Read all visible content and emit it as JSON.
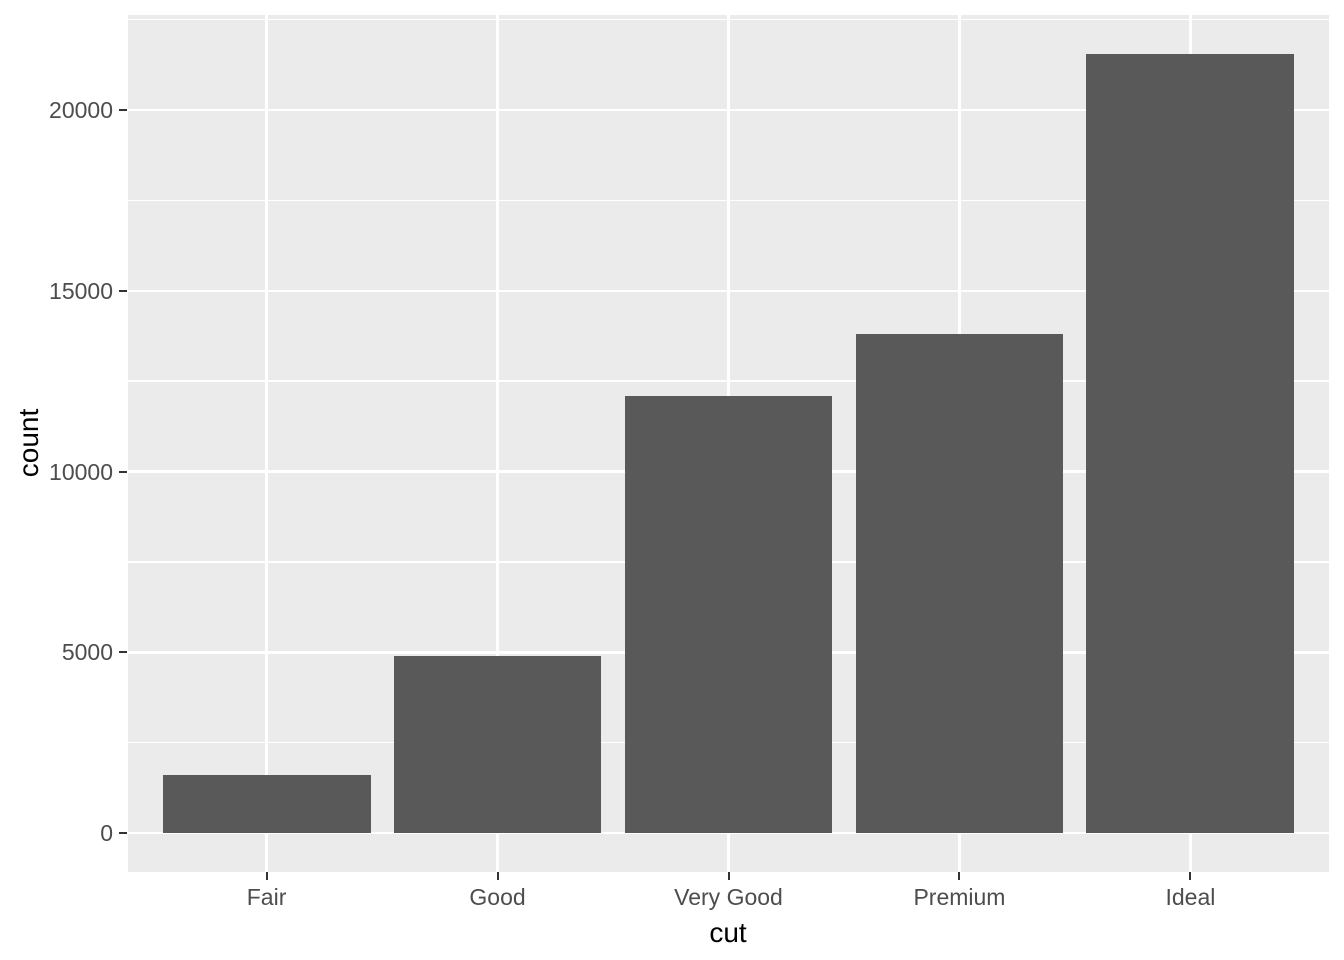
{
  "chart_data": {
    "type": "bar",
    "title": "",
    "categories": [
      "Fair",
      "Good",
      "Very Good",
      "Premium",
      "Ideal"
    ],
    "values": [
      1610,
      4906,
      12082,
      13791,
      21551
    ],
    "xlabel": "cut",
    "ylabel": "count",
    "y_ticks": {
      "breaks": [
        0,
        5000,
        10000,
        15000,
        20000
      ],
      "labels": [
        "0",
        "5000",
        "10000",
        "15000",
        "20000"
      ]
    },
    "y_minor_breaks": [
      2500,
      7500,
      12500,
      17500,
      22500
    ],
    "ylim": [
      -1078,
      22629
    ],
    "xlim_units": [
      0.4,
      5.6
    ],
    "bar_relative_width": 0.9,
    "grid": {
      "major": true,
      "minor": true
    },
    "legend_position": "none",
    "style": {
      "bar_fill": "#595959",
      "panel_background": "#EBEBEB",
      "grid_color": "#FFFFFF",
      "tick_label_color": "#4D4D4D",
      "axis_title_color": "#000000",
      "tick_mark_color": "#333333",
      "figure_background": "#FFFFFF"
    }
  }
}
